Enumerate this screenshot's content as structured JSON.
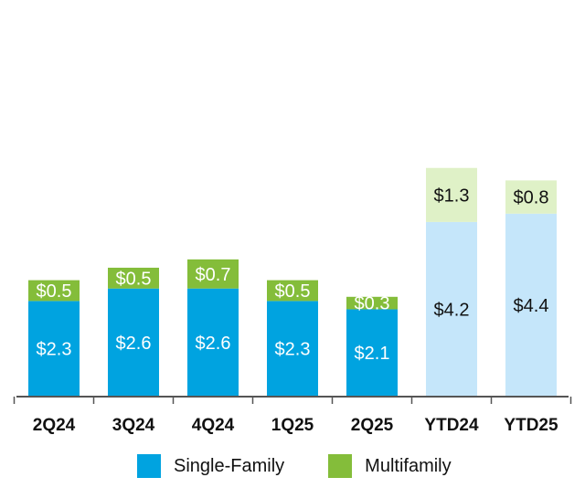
{
  "chart_data": {
    "type": "bar",
    "stacked": true,
    "categories": [
      "2Q24",
      "3Q24",
      "4Q24",
      "1Q25",
      "2Q25",
      "YTD24",
      "YTD25"
    ],
    "series": [
      {
        "name": "Single-Family",
        "values": [
          2.3,
          2.6,
          2.6,
          2.3,
          2.1,
          4.2,
          4.4
        ],
        "labels": [
          "$2.3",
          "$2.6",
          "$2.6",
          "$2.3",
          "$2.1",
          "$4.2",
          "$4.4"
        ],
        "color": "#00a3e0",
        "ytd_color": "#c5e6fa"
      },
      {
        "name": "Multifamily",
        "values": [
          0.5,
          0.5,
          0.7,
          0.5,
          0.3,
          1.3,
          0.8
        ],
        "labels": [
          "$0.5",
          "$0.5",
          "$0.7",
          "$0.5",
          "$0.3",
          "$1.3",
          "$0.8"
        ],
        "color": "#84bd3a",
        "ytd_color": "#dff1c7"
      }
    ],
    "highlighted_categories": [
      "YTD24",
      "YTD25"
    ],
    "grid": false,
    "legend_position": "bottom"
  }
}
